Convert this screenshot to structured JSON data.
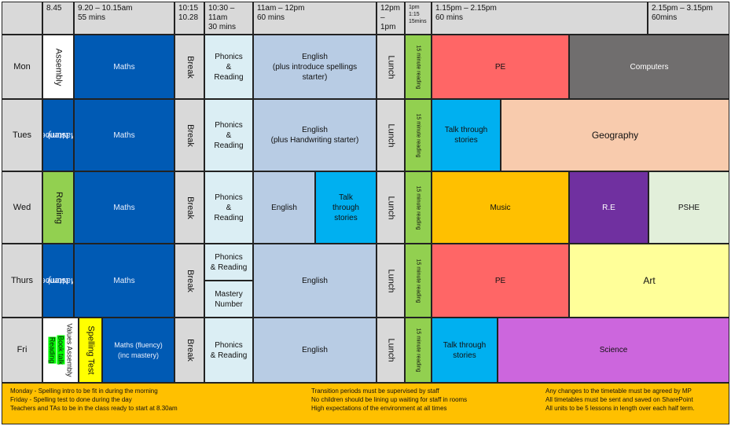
{
  "headers": {
    "h_start": "8.45",
    "h_p1": [
      "9.20 – 10.15am",
      "55 mins"
    ],
    "h_p2": [
      "10:15",
      "10.28"
    ],
    "h_p3": [
      "10:30 –",
      "11am",
      "30 mins"
    ],
    "h_p4": [
      "11am – 12pm",
      "60 mins"
    ],
    "h_lunch": [
      "12pm",
      "– 1pm"
    ],
    "h_read": [
      "1pm",
      "1:15",
      "15mins"
    ],
    "h_p5": [
      "1.15pm – 2.15pm",
      "60 mins"
    ],
    "h_p6": [
      "2.15pm – 3.15pm",
      "60mins"
    ]
  },
  "days": {
    "mon": "Mon",
    "tue": "Tues",
    "wed": "Wed",
    "thu": "Thurs",
    "fri": "Fri"
  },
  "lessons": {
    "assembly": "Assembly",
    "mastery_number": [
      "Mastery",
      "Number"
    ],
    "reading": "Reading",
    "fri_values": "Values",
    "fri_assembly": "Assembly",
    "fri_book_talk": "Book talk",
    "fri_reading": "Reading",
    "spelling_test": "Spelling Test",
    "maths": "Maths",
    "maths_fluency": [
      "Maths (fluency)",
      "(inc mastery)"
    ],
    "break": "Break",
    "phonics_reading": [
      "Phonics",
      "&",
      "Reading"
    ],
    "phonics_reading_thu": [
      "Phonics",
      "& Reading"
    ],
    "mastery_number_thu": [
      "Mastery",
      "Number"
    ],
    "english_mon": [
      "English",
      "(plus introduce spellings",
      "starter)"
    ],
    "english_tue": [
      "English",
      "(plus Handwriting starter)"
    ],
    "english": "English",
    "talk_through_stories_wed": [
      "Talk",
      "through",
      "stories"
    ],
    "talk_through_stories": [
      "Talk through",
      "stories"
    ],
    "lunch": "Lunch",
    "reading_15": "15 minute reading",
    "pe": "PE",
    "computers": "Computers",
    "geography": "Geography",
    "music": "Music",
    "re": "R.E",
    "pshe": "PSHE",
    "art": "Art",
    "science": "Science"
  },
  "notes": {
    "col1": [
      "Monday - Spelling intro to be fit in during the morning",
      "Friday - Spelling test to done during the day",
      "Teachers and TAs to be in the class ready to start at 8.30am"
    ],
    "col2": [
      "Transition periods must be supervised by staff",
      "No children should be lining up waiting for staff in rooms",
      "High expectations of the environment at all times"
    ],
    "col3": [
      "Any changes to the timetable must be agreed by MP",
      "All timetables must be sent and saved on SharePoint",
      "All units to be 5 lessons in length over each half term."
    ]
  },
  "colors": {
    "header_grey": "#d9d9d9",
    "maths_blue": "#005ab4",
    "phonics_light_blue": "#dbeef4",
    "english_blue": "#b8cce4",
    "stories_cyan": "#00b0f0",
    "reading_green": "#92d050",
    "pe_red": "#ff6666",
    "computers_grey": "#706e6e",
    "geography_peach": "#f8cbad",
    "music_amber": "#ffc000",
    "re_purple": "#7030a0",
    "pshe_pale_green": "#e2efda",
    "art_light_yellow": "#ffff99",
    "science_mauve": "#cc66dd",
    "spelling_yellow": "#ffff00",
    "notes_amber": "#ffc000"
  }
}
